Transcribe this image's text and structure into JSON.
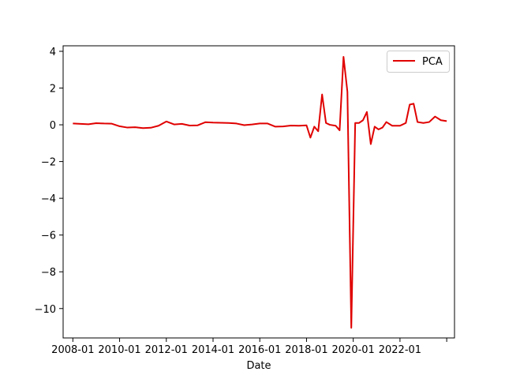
{
  "chart_data": {
    "type": "line",
    "title": "",
    "xlabel": "Date",
    "ylabel": "",
    "x_tick_labels": [
      "2008-01",
      "2010-01",
      "2012-01",
      "2014-01",
      "2016-01",
      "2018-01",
      "2020-01",
      "2022-01"
    ],
    "y_tick_labels": [
      "4",
      "2",
      "0",
      "−2",
      "−4",
      "−6",
      "−8",
      "−10"
    ],
    "xlim": [
      "2007-08",
      "2024-05"
    ],
    "ylim": [
      -11.6,
      4.3
    ],
    "grid": false,
    "legend_position": "top-right",
    "series": [
      {
        "name": "PCA",
        "color": "#e00000",
        "points": [
          [
            "2008-01",
            0.07
          ],
          [
            "2008-05",
            0.05
          ],
          [
            "2008-09",
            0.03
          ],
          [
            "2009-01",
            0.09
          ],
          [
            "2009-05",
            0.07
          ],
          [
            "2009-09",
            0.06
          ],
          [
            "2010-01",
            -0.08
          ],
          [
            "2010-05",
            -0.15
          ],
          [
            "2010-09",
            -0.13
          ],
          [
            "2011-01",
            -0.18
          ],
          [
            "2011-05",
            -0.16
          ],
          [
            "2011-09",
            -0.05
          ],
          [
            "2012-01",
            0.18
          ],
          [
            "2012-05",
            0.02
          ],
          [
            "2012-09",
            0.05
          ],
          [
            "2013-01",
            -0.04
          ],
          [
            "2013-05",
            -0.03
          ],
          [
            "2013-09",
            0.14
          ],
          [
            "2014-01",
            0.12
          ],
          [
            "2014-05",
            0.11
          ],
          [
            "2014-09",
            0.1
          ],
          [
            "2015-01",
            0.07
          ],
          [
            "2015-05",
            -0.02
          ],
          [
            "2015-09",
            0.02
          ],
          [
            "2016-01",
            0.07
          ],
          [
            "2016-05",
            0.07
          ],
          [
            "2016-09",
            -0.1
          ],
          [
            "2017-01",
            -0.09
          ],
          [
            "2017-05",
            -0.04
          ],
          [
            "2017-09",
            -0.05
          ],
          [
            "2018-01",
            -0.03
          ],
          [
            "2018-03",
            -0.7
          ],
          [
            "2018-05",
            -0.1
          ],
          [
            "2018-07",
            -0.35
          ],
          [
            "2018-09",
            1.65
          ],
          [
            "2018-11",
            0.1
          ],
          [
            "2019-01",
            0.0
          ],
          [
            "2019-04",
            -0.05
          ],
          [
            "2019-06",
            -0.3
          ],
          [
            "2019-08",
            3.7
          ],
          [
            "2019-10",
            1.8
          ],
          [
            "2019-12",
            -11.05
          ],
          [
            "2020-02",
            0.1
          ],
          [
            "2020-04",
            0.1
          ],
          [
            "2020-06",
            0.25
          ],
          [
            "2020-08",
            0.7
          ],
          [
            "2020-10",
            -1.05
          ],
          [
            "2020-12",
            -0.1
          ],
          [
            "2021-02",
            -0.25
          ],
          [
            "2021-04",
            -0.15
          ],
          [
            "2021-06",
            0.15
          ],
          [
            "2021-09",
            -0.05
          ],
          [
            "2022-01",
            -0.05
          ],
          [
            "2022-04",
            0.1
          ],
          [
            "2022-06",
            1.1
          ],
          [
            "2022-08",
            1.15
          ],
          [
            "2022-10",
            0.15
          ],
          [
            "2023-01",
            0.1
          ],
          [
            "2023-04",
            0.15
          ],
          [
            "2023-07",
            0.45
          ],
          [
            "2023-10",
            0.25
          ],
          [
            "2024-01",
            0.2
          ]
        ]
      }
    ]
  }
}
